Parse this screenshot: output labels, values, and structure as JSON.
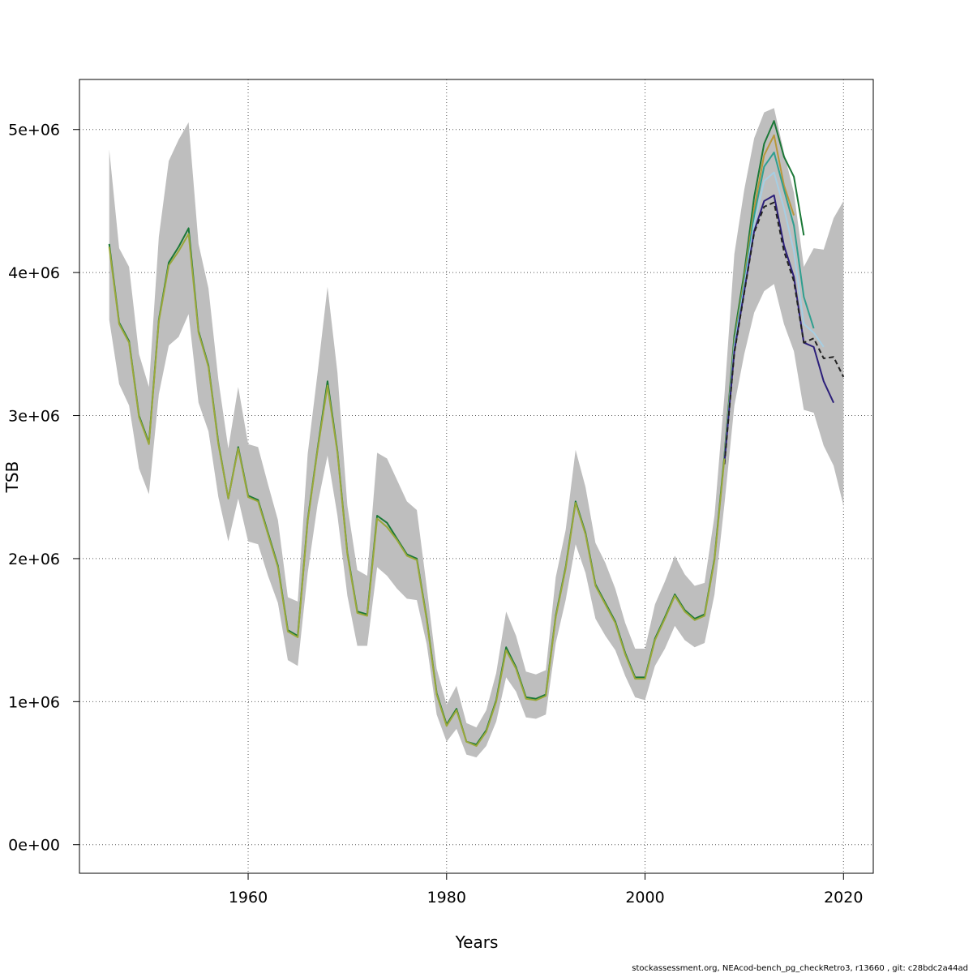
{
  "chart_data": {
    "type": "line",
    "title": "",
    "xlabel": "Years",
    "ylabel": "TSB",
    "xlim": [
      1943,
      2023
    ],
    "ylim": [
      -200000,
      5350000
    ],
    "x_ticks": [
      1960,
      1980,
      2000,
      2020
    ],
    "x_tick_labels": [
      "1960",
      "1980",
      "2000",
      "2020"
    ],
    "y_ticks": [
      0,
      1000000,
      2000000,
      3000000,
      4000000,
      5000000
    ],
    "y_tick_labels": [
      "0e+00",
      "1e+06",
      "2e+06",
      "3e+06",
      "4e+06",
      "5e+06"
    ],
    "grid": true,
    "legend": "none",
    "footer": "stockassessment.org, NEAcod-bench_pg_checkRetro3, r13660 , git: c28bdc2a44ad",
    "confidence_band": {
      "x": [
        1946,
        1947,
        1948,
        1949,
        1950,
        1951,
        1952,
        1953,
        1954,
        1955,
        1956,
        1957,
        1958,
        1959,
        1960,
        1961,
        1962,
        1963,
        1964,
        1965,
        1966,
        1967,
        1968,
        1969,
        1970,
        1971,
        1972,
        1973,
        1974,
        1975,
        1976,
        1977,
        1978,
        1979,
        1980,
        1981,
        1982,
        1983,
        1984,
        1985,
        1986,
        1987,
        1988,
        1989,
        1990,
        1991,
        1992,
        1993,
        1994,
        1995,
        1996,
        1997,
        1998,
        1999,
        2000,
        2001,
        2002,
        2003,
        2004,
        2005,
        2006,
        2007,
        2008,
        2009,
        2010,
        2011,
        2012,
        2013,
        2014,
        2015,
        2016,
        2017,
        2018,
        2019,
        2020
      ],
      "upper": [
        4860000,
        4170000,
        4040000,
        3430000,
        3200000,
        4250000,
        4780000,
        4930000,
        5050000,
        4200000,
        3890000,
        3250000,
        2770000,
        3200000,
        2800000,
        2780000,
        2520000,
        2270000,
        1730000,
        1700000,
        2730000,
        3300000,
        3900000,
        3300000,
        2370000,
        1920000,
        1880000,
        2740000,
        2700000,
        2550000,
        2400000,
        2340000,
        1800000,
        1230000,
        980000,
        1110000,
        850000,
        820000,
        940000,
        1200000,
        1630000,
        1460000,
        1210000,
        1190000,
        1220000,
        1870000,
        2200000,
        2760000,
        2500000,
        2110000,
        1970000,
        1790000,
        1550000,
        1370000,
        1370000,
        1680000,
        1840000,
        2020000,
        1890000,
        1810000,
        1830000,
        2300000,
        3140000,
        4130000,
        4580000,
        4940000,
        5120000,
        5150000,
        4840000,
        4560000,
        4040000,
        4170000,
        4160000,
        4380000,
        4500000
      ],
      "lower": [
        3670000,
        3220000,
        3070000,
        2630000,
        2450000,
        3150000,
        3490000,
        3550000,
        3710000,
        3090000,
        2890000,
        2430000,
        2120000,
        2420000,
        2120000,
        2100000,
        1880000,
        1690000,
        1290000,
        1250000,
        1900000,
        2380000,
        2720000,
        2300000,
        1740000,
        1390000,
        1390000,
        1940000,
        1880000,
        1790000,
        1720000,
        1710000,
        1400000,
        910000,
        720000,
        810000,
        630000,
        610000,
        690000,
        860000,
        1170000,
        1070000,
        890000,
        880000,
        910000,
        1410000,
        1710000,
        2100000,
        1900000,
        1580000,
        1460000,
        1360000,
        1180000,
        1030000,
        1010000,
        1250000,
        1370000,
        1530000,
        1430000,
        1380000,
        1410000,
        1750000,
        2380000,
        3070000,
        3430000,
        3720000,
        3870000,
        3920000,
        3640000,
        3450000,
        3040000,
        3020000,
        2790000,
        2650000,
        2370000
      ]
    },
    "series": [
      {
        "color": "#1b7837",
        "dashed": false,
        "x": [
          1946,
          1947,
          1948,
          1949,
          1950,
          1951,
          1952,
          1953,
          1954,
          1955,
          1956,
          1957,
          1958,
          1959,
          1960,
          1961,
          1962,
          1963,
          1964,
          1965,
          1966,
          1967,
          1968,
          1969,
          1970,
          1971,
          1972,
          1973,
          1974,
          1975,
          1976,
          1977,
          1978,
          1979,
          1980,
          1981,
          1982,
          1983,
          1984,
          1985,
          1986,
          1987,
          1988,
          1989,
          1990,
          1991,
          1992,
          1993,
          1994,
          1995,
          1996,
          1997,
          1998,
          1999,
          2000,
          2001,
          2002,
          2003,
          2004,
          2005,
          2006,
          2007,
          2008,
          2009,
          2010,
          2011,
          2012,
          2013,
          2014,
          2015,
          2016
        ],
        "y": [
          4200000,
          3650000,
          3520000,
          3000000,
          2810000,
          3670000,
          4070000,
          4180000,
          4310000,
          3590000,
          3350000,
          2810000,
          2420000,
          2780000,
          2440000,
          2410000,
          2180000,
          1950000,
          1500000,
          1460000,
          2270000,
          2770000,
          3240000,
          2750000,
          2040000,
          1630000,
          1610000,
          2300000,
          2250000,
          2140000,
          2030000,
          2000000,
          1580000,
          1060000,
          840000,
          950000,
          720000,
          700000,
          800000,
          1010000,
          1380000,
          1240000,
          1030000,
          1020000,
          1050000,
          1600000,
          1940000,
          2400000,
          2180000,
          1820000,
          1690000,
          1560000,
          1340000,
          1170000,
          1170000,
          1440000,
          1590000,
          1750000,
          1640000,
          1580000,
          1610000,
          2000000,
          2720000,
          3560000,
          4000000,
          4530000,
          4900000,
          5060000,
          4810000,
          4670000,
          4260000
        ]
      },
      {
        "color": "#b8973a",
        "dashed": false,
        "x": [
          2008,
          2009,
          2010,
          2011,
          2012,
          2013,
          2014,
          2015
        ],
        "y": [
          2700000,
          3520000,
          3960000,
          4450000,
          4820000,
          4960000,
          4610000,
          4400000
        ]
      },
      {
        "color": "#2f9f8f",
        "dashed": false,
        "x": [
          2008,
          2009,
          2010,
          2011,
          2012,
          2013,
          2014,
          2015,
          2016,
          2017
        ],
        "y": [
          2690000,
          3500000,
          3930000,
          4400000,
          4740000,
          4840000,
          4580000,
          4330000,
          3830000,
          3610000
        ]
      },
      {
        "color": "#a6cee3",
        "dashed": false,
        "x": [
          2008,
          2009,
          2010,
          2011,
          2012,
          2013,
          2014,
          2015,
          2016,
          2017,
          2018
        ],
        "y": [
          2680000,
          3480000,
          3900000,
          4340000,
          4640000,
          4700000,
          4450000,
          4150000,
          3640000,
          3580000,
          3480000
        ]
      },
      {
        "color": "#2c1f7a",
        "dashed": false,
        "x": [
          2008,
          2009,
          2010,
          2011,
          2012,
          2013,
          2014,
          2015,
          2016,
          2017,
          2018,
          2019
        ],
        "y": [
          2670000,
          3450000,
          3870000,
          4290000,
          4500000,
          4540000,
          4190000,
          3970000,
          3510000,
          3480000,
          3240000,
          3090000
        ]
      },
      {
        "color": "#222222",
        "dashed": true,
        "x": [
          2008,
          2009,
          2010,
          2011,
          2012,
          2013,
          2014,
          2015,
          2016,
          2017,
          2018,
          2019,
          2020
        ],
        "y": [
          2660000,
          3440000,
          3860000,
          4280000,
          4460000,
          4490000,
          4150000,
          3940000,
          3510000,
          3540000,
          3400000,
          3410000,
          3270000
        ]
      },
      {
        "color": "#9aa83a",
        "dashed": false,
        "x": [
          1946,
          1947,
          1948,
          1949,
          1950,
          1951,
          1952,
          1953,
          1954,
          1955,
          1956,
          1957,
          1958,
          1959,
          1960,
          1961,
          1962,
          1963,
          1964,
          1965,
          1966,
          1967,
          1968,
          1969,
          1970,
          1971,
          1972,
          1973,
          1974,
          1975,
          1976,
          1977,
          1978,
          1979,
          1980,
          1981,
          1982,
          1983,
          1984,
          1985,
          1986,
          1987,
          1988,
          1989,
          1990,
          1991,
          1992,
          1993,
          1994,
          1995,
          1996,
          1997,
          1998,
          1999,
          2000,
          2001,
          2002,
          2003,
          2004,
          2005,
          2006,
          2007,
          2008
        ],
        "y": [
          4180000,
          3640000,
          3510000,
          2990000,
          2800000,
          3660000,
          4050000,
          4150000,
          4270000,
          3580000,
          3340000,
          2800000,
          2420000,
          2770000,
          2430000,
          2400000,
          2170000,
          1940000,
          1490000,
          1450000,
          2260000,
          2760000,
          3210000,
          2740000,
          2030000,
          1620000,
          1600000,
          2280000,
          2220000,
          2130000,
          2020000,
          1990000,
          1570000,
          1050000,
          830000,
          940000,
          720000,
          690000,
          790000,
          1000000,
          1360000,
          1230000,
          1020000,
          1010000,
          1040000,
          1590000,
          1930000,
          2390000,
          2170000,
          1810000,
          1680000,
          1550000,
          1330000,
          1160000,
          1160000,
          1430000,
          1580000,
          1740000,
          1630000,
          1570000,
          1600000,
          1990000,
          2700000
        ]
      }
    ]
  }
}
